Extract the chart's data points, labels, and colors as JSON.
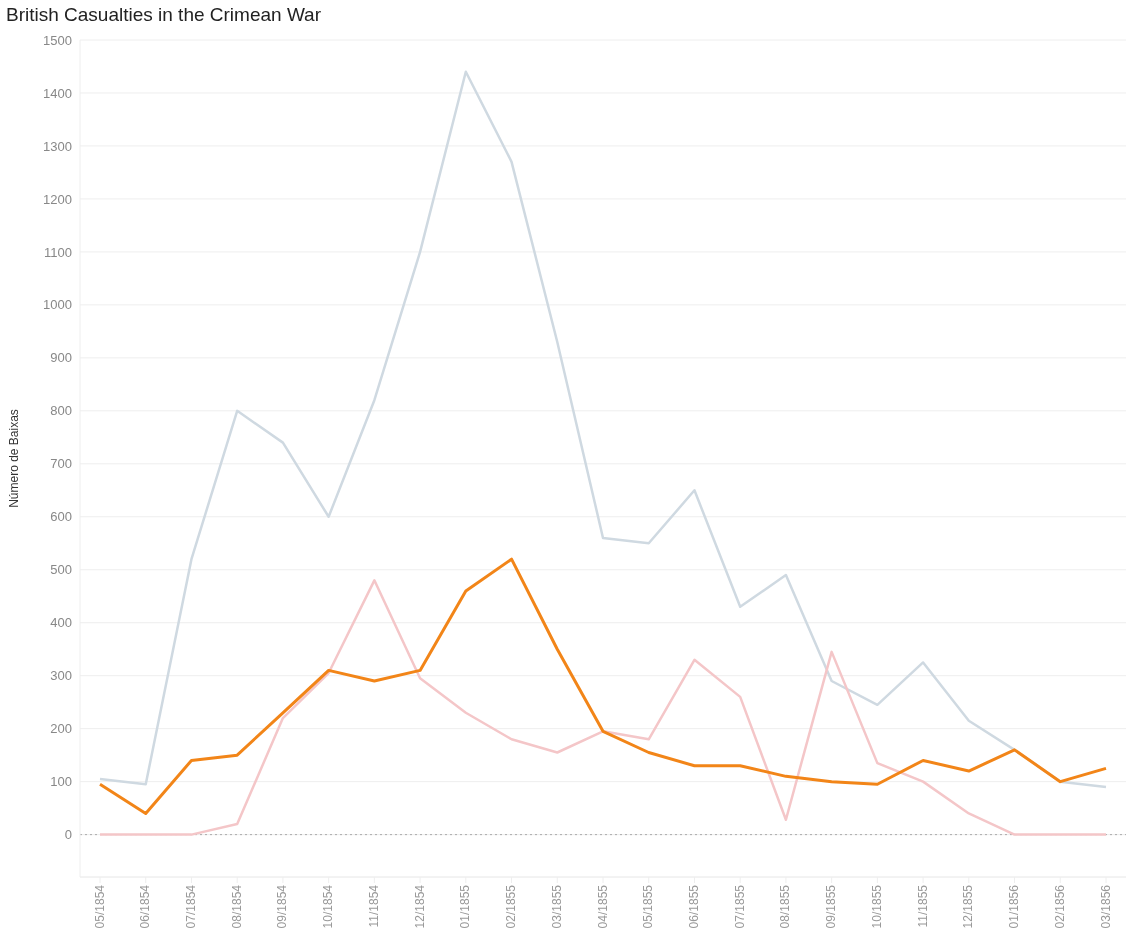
{
  "chart_data": {
    "type": "line",
    "title": "British Casualties in the Crimean War",
    "ylabel": "Número de Baixas",
    "categories": [
      "05/1854",
      "06/1854",
      "07/1854",
      "08/1854",
      "09/1854",
      "10/1854",
      "11/1854",
      "12/1854",
      "01/1855",
      "02/1855",
      "03/1855",
      "04/1855",
      "05/1855",
      "06/1855",
      "07/1855",
      "08/1855",
      "09/1855",
      "10/1855",
      "11/1855",
      "12/1855",
      "01/1856",
      "02/1856",
      "03/1856"
    ],
    "series": [
      {
        "color": "#cfd9e1",
        "values": [
          105,
          95,
          520,
          800,
          740,
          600,
          820,
          1100,
          1440,
          1270,
          930,
          560,
          550,
          650,
          430,
          490,
          290,
          245,
          325,
          215,
          160,
          100,
          90
        ]
      },
      {
        "color": "#f4c6c8",
        "values": [
          0,
          0,
          0,
          20,
          220,
          305,
          480,
          295,
          230,
          180,
          155,
          195,
          180,
          330,
          260,
          28,
          345,
          135,
          100,
          40,
          0,
          0,
          0
        ]
      },
      {
        "color": "#f28518",
        "values": [
          95,
          40,
          140,
          150,
          230,
          310,
          290,
          310,
          460,
          520,
          350,
          195,
          155,
          130,
          130,
          110,
          100,
          95,
          140,
          120,
          160,
          100,
          125
        ]
      }
    ],
    "ylim": [
      -80,
      1500
    ],
    "yticks": [
      0,
      100,
      200,
      300,
      400,
      500,
      600,
      700,
      800,
      900,
      1000,
      1100,
      1200,
      1300,
      1400,
      1500
    ],
    "grid": "y",
    "legend": false,
    "marker": "none",
    "line_style": "solid",
    "ref_lines": [
      {
        "axis": "y",
        "value": 0,
        "color": "#aaaaaa",
        "line_style": "dotted"
      }
    ]
  }
}
